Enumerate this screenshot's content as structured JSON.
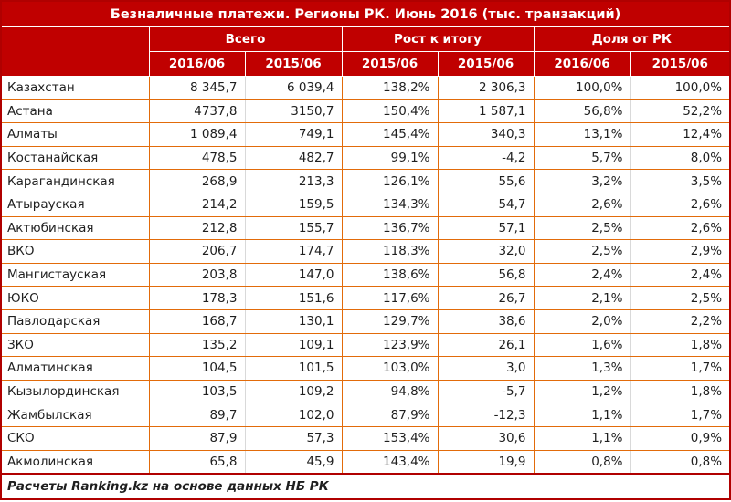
{
  "chart_data": {
    "type": "table",
    "title": "Безналичные платежи. Регионы РК. Июнь 2016 (тыс. транзакций)",
    "column_groups": [
      {
        "label": "Всего",
        "cols": [
          "2016/06",
          "2015/06"
        ]
      },
      {
        "label": "Рост к итогу",
        "cols": [
          "2015/06",
          "2015/06"
        ]
      },
      {
        "label": "Доля от РК",
        "cols": [
          "2016/06",
          "2015/06"
        ]
      }
    ],
    "rows": [
      {
        "region": "Казахстан",
        "values": [
          "8 345,7",
          "6 039,4",
          "138,2%",
          "2 306,3",
          "100,0%",
          "100,0%"
        ]
      },
      {
        "region": "Астана",
        "values": [
          "4737,8",
          "3150,7",
          "150,4%",
          "1 587,1",
          "56,8%",
          "52,2%"
        ]
      },
      {
        "region": "Алматы",
        "values": [
          "1 089,4",
          "749,1",
          "145,4%",
          "340,3",
          "13,1%",
          "12,4%"
        ]
      },
      {
        "region": "Костанайская",
        "values": [
          "478,5",
          "482,7",
          "99,1%",
          "-4,2",
          "5,7%",
          "8,0%"
        ]
      },
      {
        "region": "Карагандинская",
        "values": [
          "268,9",
          "213,3",
          "126,1%",
          "55,6",
          "3,2%",
          "3,5%"
        ]
      },
      {
        "region": "Атырауская",
        "values": [
          "214,2",
          "159,5",
          "134,3%",
          "54,7",
          "2,6%",
          "2,6%"
        ]
      },
      {
        "region": "Актюбинская",
        "values": [
          "212,8",
          "155,7",
          "136,7%",
          "57,1",
          "2,5%",
          "2,6%"
        ]
      },
      {
        "region": "ВКО",
        "values": [
          "206,7",
          "174,7",
          "118,3%",
          "32,0",
          "2,5%",
          "2,9%"
        ]
      },
      {
        "region": "Мангистауская",
        "values": [
          "203,8",
          "147,0",
          "138,6%",
          "56,8",
          "2,4%",
          "2,4%"
        ]
      },
      {
        "region": "ЮКО",
        "values": [
          "178,3",
          "151,6",
          "117,6%",
          "26,7",
          "2,1%",
          "2,5%"
        ]
      },
      {
        "region": "Павлодарская",
        "values": [
          "168,7",
          "130,1",
          "129,7%",
          "38,6",
          "2,0%",
          "2,2%"
        ]
      },
      {
        "region": "ЗКО",
        "values": [
          "135,2",
          "109,1",
          "123,9%",
          "26,1",
          "1,6%",
          "1,8%"
        ]
      },
      {
        "region": "Алматинская",
        "values": [
          "104,5",
          "101,5",
          "103,0%",
          "3,0",
          "1,3%",
          "1,7%"
        ]
      },
      {
        "region": "Кызылординская",
        "values": [
          "103,5",
          "109,2",
          "94,8%",
          "-5,7",
          "1,2%",
          "1,8%"
        ]
      },
      {
        "region": "Жамбылская",
        "values": [
          "89,7",
          "102,0",
          "87,9%",
          "-12,3",
          "1,1%",
          "1,7%"
        ]
      },
      {
        "region": "СКО",
        "values": [
          "87,9",
          "57,3",
          "153,4%",
          "30,6",
          "1,1%",
          "0,9%"
        ]
      },
      {
        "region": "Акмолинская",
        "values": [
          "65,8",
          "45,9",
          "143,4%",
          "19,9",
          "0,8%",
          "0,8%"
        ]
      }
    ],
    "footer": "Расчеты Ranking.kz на основе данных НБ РК",
    "layout": {
      "value_column_separators": [
        "orange",
        "gray",
        "orange",
        "orange",
        "orange",
        "gray"
      ]
    }
  },
  "colors": {
    "header_bg": "#C00000",
    "header_text": "#FFFFFF",
    "border_orange": "#E26B0A",
    "border_gray": "#D9D9D9",
    "outer_border": "#B00000",
    "text": "#1F1F1F",
    "row_bg": "#FFFFFF"
  }
}
